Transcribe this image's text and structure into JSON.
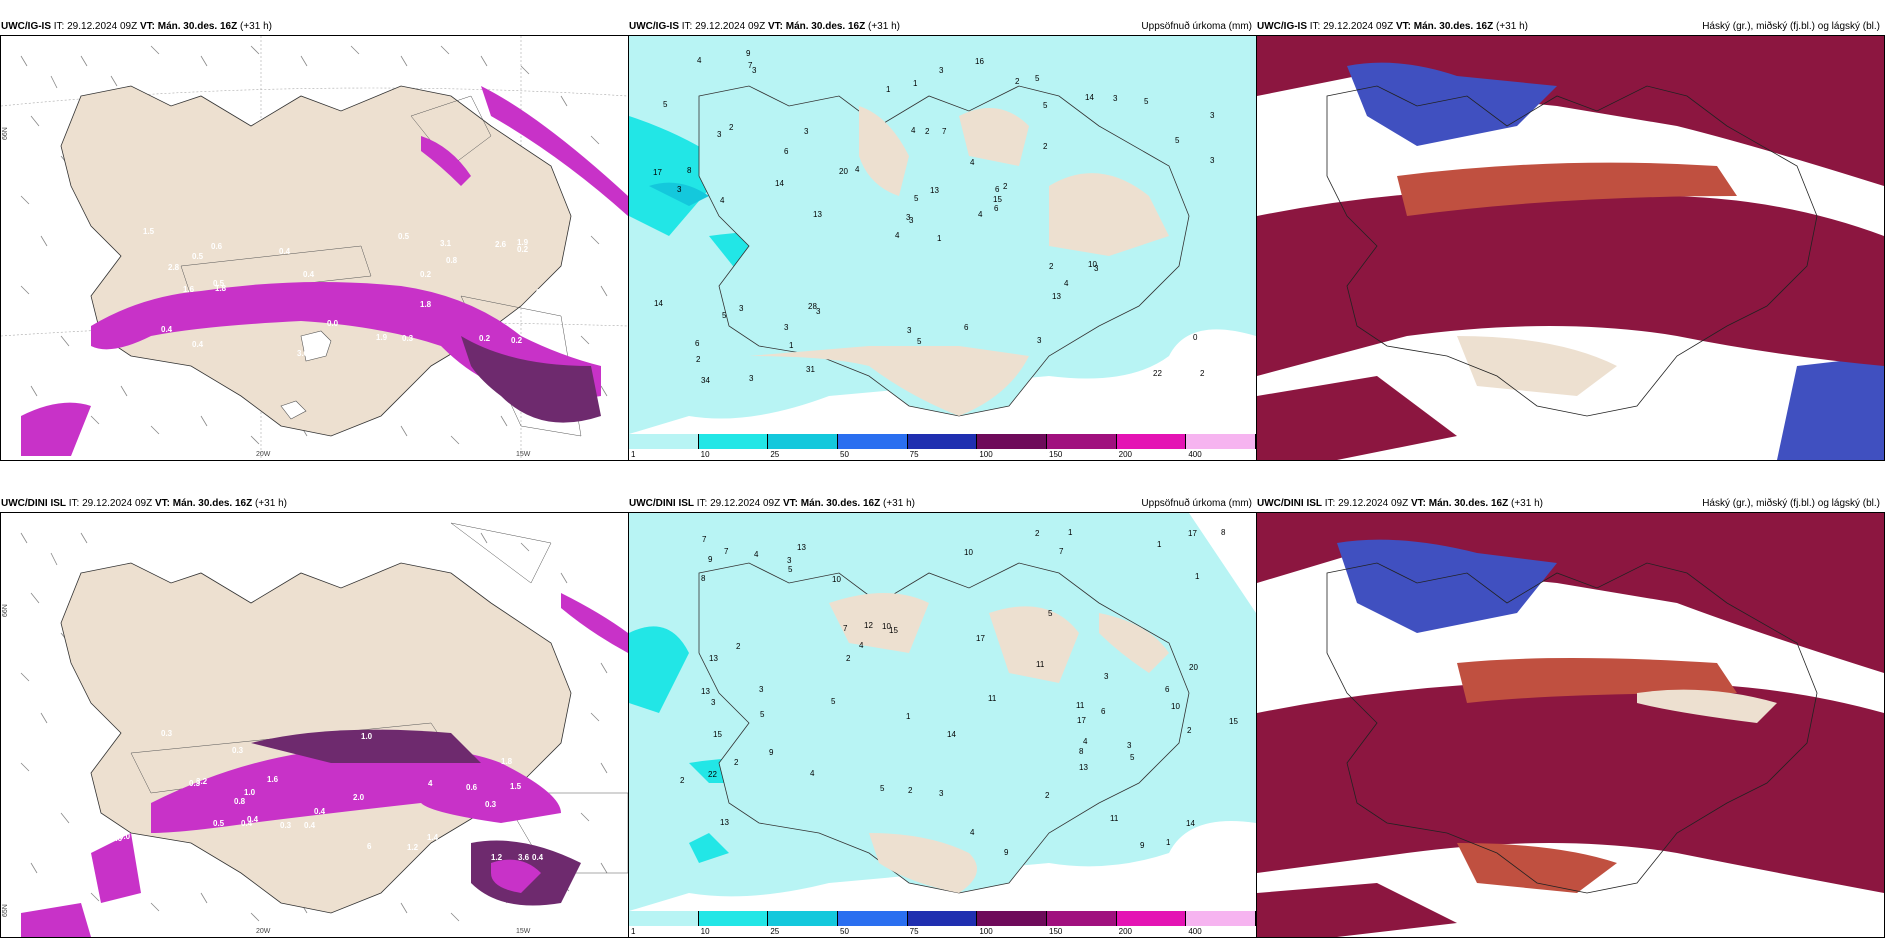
{
  "rows": [
    {
      "model": "UWC/IG-IS",
      "panels": [
        {
          "it": "IT: 29.12.2024 09Z",
          "vt": "VT: Mán. 30.des. 16Z",
          "lead": "(+31 h)",
          "right": ""
        },
        {
          "it": "IT: 29.12.2024 09Z",
          "vt": "VT: Mán. 30.des. 16Z",
          "lead": "(+31 h)",
          "right": "Uppsöfnuð úrkoma (mm)"
        },
        {
          "it": "IT: 29.12.2024 09Z",
          "vt": "VT: Mán. 30.des. 16Z",
          "lead": "(+31 h)",
          "right": "Háský (gr.), miðský (fj.bl.) og lágský (bl.)"
        }
      ],
      "axis_labels": {
        "lat": "66N",
        "lon1": "20W",
        "lon2": "15W"
      },
      "precip_values": [
        "1",
        "3",
        "3",
        "6",
        "6",
        "3",
        "5",
        "7",
        "5",
        "4",
        "3",
        "2",
        "4",
        "3",
        "4",
        "2",
        "3",
        "4",
        "4",
        "3",
        "4",
        "2",
        "1",
        "2",
        "2",
        "3",
        "2",
        "1",
        "3",
        "2",
        "3",
        "3",
        "3",
        "5",
        "3",
        "14",
        "28",
        "22",
        "0",
        "10",
        "16",
        "20",
        "14",
        "13",
        "31",
        "17",
        "15",
        "34",
        "5",
        "6",
        "5",
        "5",
        "5",
        "4",
        "3",
        "3",
        "7",
        "4",
        "6",
        "5",
        "3",
        "13",
        "8",
        "6",
        "3",
        "9",
        "2",
        "1",
        "13",
        "14"
      ],
      "precip_highlight": [
        "5",
        "4",
        "6",
        "7",
        "9",
        "13"
      ],
      "wind_values": [
        "0.1",
        "0.5",
        "0.2",
        "2.8",
        "2.6",
        "3.0",
        "1.8",
        "1.8",
        "1.9",
        "1.0",
        "0.9",
        "0.6",
        "0.8",
        "0.4",
        "0.3",
        "0.4",
        "0.5",
        "0.4",
        "0.2",
        "1.9",
        "0.2",
        "0.5",
        "0.4",
        "0.0",
        "3.1",
        "2.8",
        "0.2",
        "0.5",
        "1.5",
        "1.6",
        "0.5",
        "0.3"
      ]
    },
    {
      "model": "UWC/DINI ISL",
      "panels": [
        {
          "it": "IT: 29.12.2024 09Z",
          "vt": "VT: Mán. 30.des. 16Z",
          "lead": "(+31 h)",
          "right": ""
        },
        {
          "it": "IT: 29.12.2024 09Z",
          "vt": "VT: Mán. 30.des. 16Z",
          "lead": "(+31 h)",
          "right": "Uppsöfnuð úrkoma (mm)"
        },
        {
          "it": "IT: 29.12.2024 09Z",
          "vt": "VT: Mán. 30.des. 16Z",
          "lead": "(+31 h)",
          "right": "Háský (gr.), miðský (fj.bl.) og lágský (bl.)"
        }
      ],
      "axis_labels": {
        "lat": "66N",
        "lat2": "65N",
        "lon1": "20W",
        "lon2": "15W"
      },
      "precip_values": [
        "17",
        "10",
        "13",
        "13",
        "15",
        "11",
        "22",
        "7",
        "7",
        "9",
        "8",
        "13",
        "9",
        "14",
        "5",
        "20",
        "14",
        "11",
        "10",
        "9",
        "8",
        "1",
        "2",
        "2",
        "2",
        "3",
        "4",
        "3",
        "5",
        "3",
        "4",
        "2",
        "4",
        "5",
        "6",
        "5",
        "8",
        "3",
        "3",
        "2",
        "1",
        "1",
        "1",
        "2",
        "3",
        "4",
        "2",
        "7",
        "11",
        "13",
        "15",
        "12",
        "17",
        "11",
        "13",
        "9",
        "5",
        "7",
        "5",
        "4",
        "6",
        "10",
        "17",
        "15",
        "10",
        "2",
        "1"
      ],
      "wind_values": [
        "0.4",
        "0.3",
        "0.3",
        "0.3",
        "0.4",
        "0.3",
        "0.4",
        "0.8",
        "0.4",
        "0.6",
        "1.5",
        "1.0",
        "0.9",
        "1.2",
        "1.0",
        "1.4",
        "2.0",
        "0.5",
        "0.5",
        "1.6",
        "3.6",
        "3.2",
        "1.2",
        "0.5",
        "1.5",
        "4",
        "6",
        "6.0",
        "1.8",
        "0.6",
        "0.4",
        "0.3",
        "0.6",
        "0.4"
      ]
    }
  ],
  "colorbar": {
    "ticks": [
      "1",
      "10",
      "25",
      "50",
      "75",
      "100",
      "150",
      "200",
      "400"
    ],
    "colors": [
      "#b8f4f4",
      "#22e6e6",
      "#14c8dc",
      "#2a6ff0",
      "#1f2fb0",
      "#6e0a5a",
      "#a0107e",
      "#e414b4",
      "#f6b4f0"
    ]
  },
  "colors": {
    "land": "#ede0d0",
    "light_cyan": "#b8f4f4",
    "cyan": "#22e6e6",
    "magenta": "#c832c8",
    "dark_purple": "#6e2a6e",
    "high_cloud": "#8c1640",
    "mid_cloud": "#c05040",
    "low_cloud": "#4050c0",
    "orange": "#e07a40"
  }
}
